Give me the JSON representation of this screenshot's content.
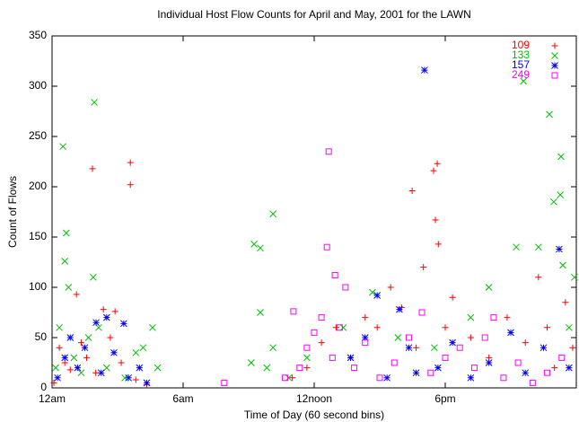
{
  "chart_data": {
    "type": "scatter",
    "title": "Individual Host Flow Counts for April and May, 2001 for the LAWN",
    "x_label": "Time of Day (60 second bins)",
    "y_label": "Count of Flows",
    "xlim": [
      0,
      1440
    ],
    "xticks": [
      {
        "value": 0,
        "label": "12am"
      },
      {
        "value": 360,
        "label": "6am"
      },
      {
        "value": 720,
        "label": "12noon"
      },
      {
        "value": 1080,
        "label": "6pm"
      }
    ],
    "ylim": [
      0,
      350
    ],
    "yticks": [
      0,
      50,
      100,
      150,
      200,
      250,
      300,
      350
    ],
    "legend": "top-right",
    "series": [
      {
        "name": "109",
        "color": "#ff0000",
        "marker": "plus",
        "x": [
          5,
          20,
          35,
          50,
          67,
          80,
          95,
          111,
          120,
          141,
          160,
          173,
          190,
          215,
          215,
          230,
          260,
          660,
          700,
          740,
          780,
          820,
          860,
          893,
          930,
          960,
          989,
          1000,
          1020,
          1048,
          1053,
          1058,
          1061,
          1080,
          1100,
          1150,
          1200,
          1250,
          1300,
          1336,
          1360,
          1380,
          1410,
          1430
        ],
        "values": [
          5,
          40,
          25,
          18,
          93,
          45,
          30,
          218,
          15,
          78,
          50,
          76,
          25,
          224,
          202,
          8,
          3,
          10,
          20,
          45,
          60,
          30,
          70,
          60,
          100,
          80,
          196,
          40,
          120,
          216,
          167,
          223,
          143,
          60,
          90,
          50,
          30,
          70,
          45,
          110,
          60,
          20,
          85,
          40
        ]
      },
      {
        "name": "133",
        "color": "#00c000",
        "marker": "cross",
        "x": [
          10,
          20,
          30,
          35,
          39,
          45,
          60,
          80,
          100,
          113,
          116,
          128,
          150,
          200,
          230,
          250,
          276,
          290,
          547,
          555,
          572,
          572,
          590,
          607,
          607,
          650,
          700,
          800,
          880,
          950,
          1050,
          1150,
          1200,
          1275,
          1295,
          1336,
          1366,
          1378,
          1396,
          1398,
          1403,
          1420,
          1435
        ],
        "values": [
          20,
          60,
          240,
          126,
          154,
          100,
          30,
          15,
          50,
          110,
          284,
          60,
          20,
          10,
          35,
          40,
          60,
          20,
          25,
          143,
          139,
          75,
          20,
          173,
          40,
          10,
          30,
          60,
          95,
          50,
          40,
          70,
          100,
          140,
          305,
          140,
          272,
          185,
          192,
          230,
          122,
          60,
          110
        ]
      },
      {
        "name": "157",
        "color": "#0000ff",
        "marker": "star",
        "x": [
          15,
          35,
          50,
          70,
          90,
          121,
          135,
          150,
          170,
          197,
          210,
          240,
          260,
          820,
          860,
          893,
          920,
          954,
          980,
          1000,
          1023,
          1060,
          1100,
          1150,
          1200,
          1260,
          1300,
          1350,
          1393,
          1420
        ],
        "values": [
          10,
          30,
          50,
          20,
          40,
          65,
          15,
          70,
          35,
          64,
          10,
          20,
          5,
          30,
          50,
          92,
          10,
          78,
          40,
          15,
          316,
          20,
          45,
          10,
          25,
          55,
          15,
          40,
          138,
          20
        ]
      },
      {
        "name": "249",
        "color": "#ff00ff",
        "marker": "square",
        "x": [
          473,
          640,
          663,
          680,
          700,
          720,
          740,
          755,
          760,
          770,
          777,
          790,
          806,
          830,
          860,
          900,
          940,
          980,
          1016,
          1040,
          1080,
          1120,
          1160,
          1189,
          1213,
          1240,
          1280,
          1320,
          1360,
          1400
        ],
        "values": [
          5,
          10,
          76,
          20,
          40,
          55,
          70,
          140,
          235,
          30,
          112,
          60,
          100,
          20,
          45,
          10,
          25,
          50,
          75,
          15,
          30,
          40,
          20,
          50,
          70,
          10,
          25,
          5,
          15,
          30
        ]
      }
    ]
  }
}
